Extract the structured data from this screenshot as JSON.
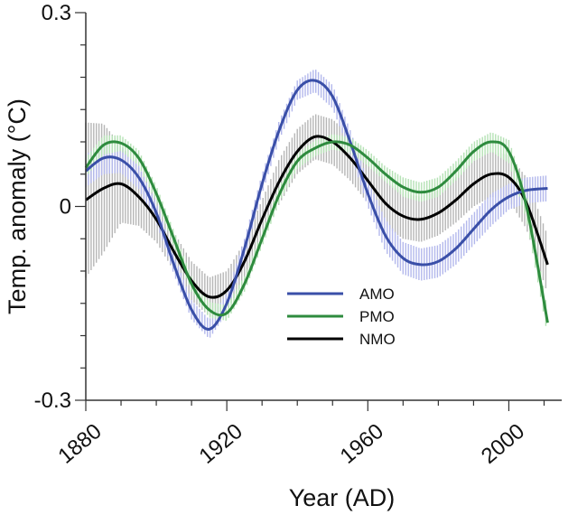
{
  "chart_data": {
    "type": "line",
    "xlabel": "Year (AD)",
    "ylabel": "Temp. anomaly (°C)",
    "xlim": [
      1880,
      2015
    ],
    "ylim": [
      -0.3,
      0.3
    ],
    "x_ticks": [
      1880,
      1920,
      1960,
      2000
    ],
    "x_tick_labels": [
      "1880",
      "1920",
      "1960",
      "2000"
    ],
    "y_ticks": [
      -0.3,
      0,
      0.3
    ],
    "y_tick_labels": [
      "-0.3",
      "0",
      "0.3"
    ],
    "legend_position": "center",
    "grid": false,
    "x": [
      1880,
      1885,
      1890,
      1895,
      1900,
      1905,
      1910,
      1915,
      1920,
      1925,
      1930,
      1935,
      1940,
      1945,
      1950,
      1955,
      1960,
      1965,
      1970,
      1975,
      1980,
      1985,
      1990,
      1995,
      2000,
      2005,
      2011
    ],
    "series": [
      {
        "name": "AMO",
        "color": "#3a4fa8",
        "band_color": "#b3b8ec",
        "values": [
          0.055,
          0.075,
          0.072,
          0.045,
          -0.01,
          -0.09,
          -0.16,
          -0.19,
          -0.15,
          -0.065,
          0.035,
          0.12,
          0.18,
          0.195,
          0.17,
          0.1,
          0.02,
          -0.045,
          -0.08,
          -0.09,
          -0.085,
          -0.065,
          -0.035,
          -0.005,
          0.015,
          0.025,
          0.028
        ],
        "band": [
          0.025,
          0.025,
          0.02,
          0.018,
          0.015,
          0.015,
          0.015,
          0.015,
          0.015,
          0.015,
          0.015,
          0.015,
          0.015,
          0.018,
          0.018,
          0.018,
          0.02,
          0.025,
          0.025,
          0.025,
          0.025,
          0.025,
          0.025,
          0.025,
          0.02,
          0.02,
          0.02
        ]
      },
      {
        "name": "PMO",
        "color": "#2e8b3e",
        "band_color": "#b5e2b5",
        "values": [
          0.06,
          0.095,
          0.098,
          0.075,
          0.02,
          -0.05,
          -0.12,
          -0.16,
          -0.165,
          -0.12,
          -0.05,
          0.02,
          0.07,
          0.09,
          0.1,
          0.095,
          0.075,
          0.05,
          0.03,
          0.022,
          0.03,
          0.055,
          0.085,
          0.1,
          0.085,
          0.0,
          -0.18
        ],
        "band": [
          0.015,
          0.015,
          0.012,
          0.012,
          0.012,
          0.012,
          0.012,
          0.012,
          0.012,
          0.012,
          0.012,
          0.012,
          0.012,
          0.012,
          0.012,
          0.012,
          0.012,
          0.012,
          0.015,
          0.015,
          0.015,
          0.015,
          0.015,
          0.015,
          0.018,
          0.02,
          0.02
        ]
      },
      {
        "name": "NMO",
        "color": "#000000",
        "band_color": "#b6b6b6",
        "values": [
          0.01,
          0.028,
          0.035,
          0.015,
          -0.02,
          -0.07,
          -0.115,
          -0.14,
          -0.13,
          -0.085,
          -0.02,
          0.04,
          0.085,
          0.108,
          0.1,
          0.075,
          0.04,
          0.005,
          -0.015,
          -0.02,
          -0.01,
          0.01,
          0.035,
          0.05,
          0.045,
          0.005,
          -0.09
        ],
        "band": [
          0.12,
          0.1,
          0.06,
          0.045,
          0.035,
          0.03,
          0.03,
          0.03,
          0.03,
          0.03,
          0.03,
          0.035,
          0.035,
          0.035,
          0.035,
          0.035,
          0.035,
          0.035,
          0.035,
          0.035,
          0.035,
          0.035,
          0.035,
          0.035,
          0.035,
          0.04,
          0.045
        ]
      }
    ]
  }
}
